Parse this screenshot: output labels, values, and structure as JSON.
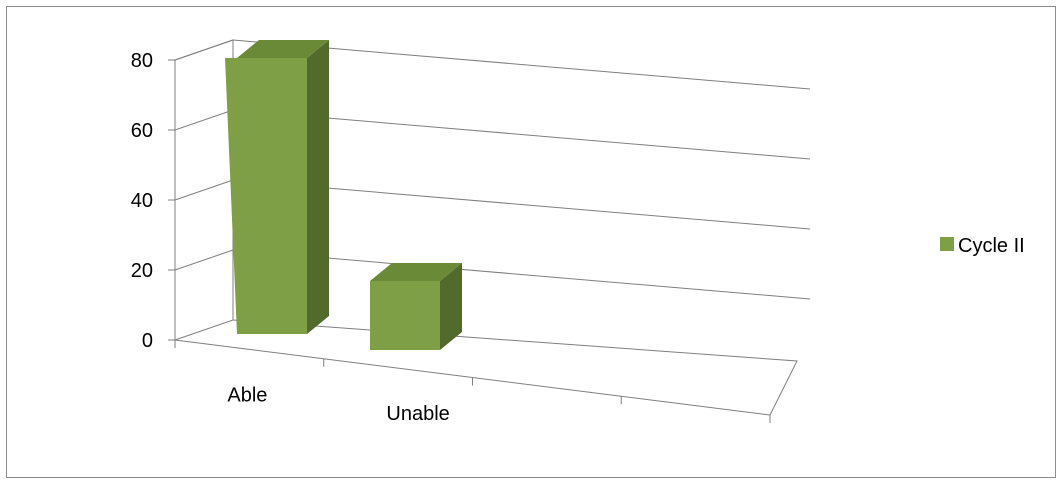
{
  "chart_data": {
    "type": "bar",
    "categories": [
      "Able",
      "Unable"
    ],
    "series": [
      {
        "name": "Cycle II",
        "values": [
          80,
          20
        ]
      }
    ],
    "ylim": [
      0,
      80
    ],
    "yticks": [
      "0",
      "20",
      "40",
      "60",
      "80"
    ],
    "grid": true,
    "legend_position": "right",
    "colors": {
      "bar_front": "#7f9f46",
      "bar_side": "#536a2d",
      "bar_top": "#6b8a37",
      "legend": "#7f9f46",
      "grid": "#7f7f7f",
      "frame": "#8c8c8c"
    }
  }
}
